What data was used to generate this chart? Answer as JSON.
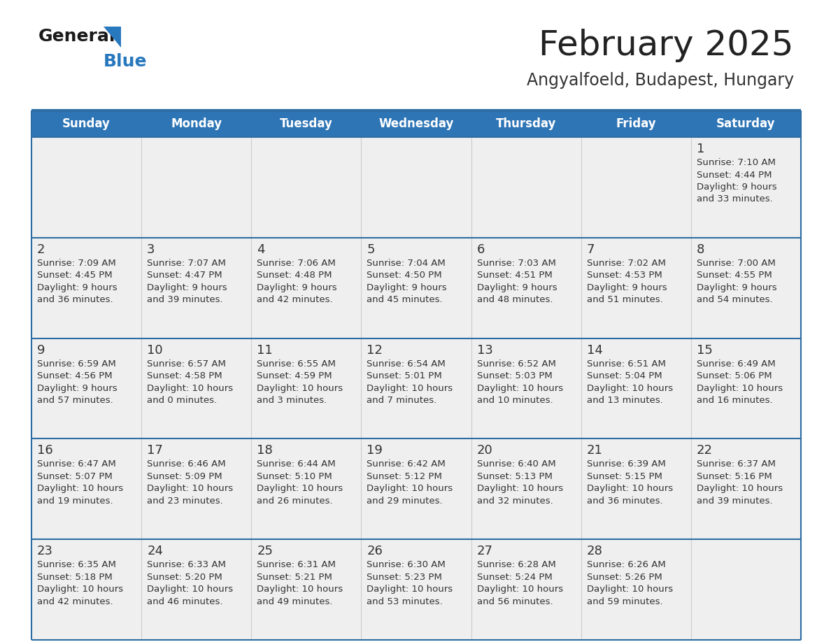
{
  "title": "February 2025",
  "subtitle": "Angyalfoeld, Budapest, Hungary",
  "days_of_week": [
    "Sunday",
    "Monday",
    "Tuesday",
    "Wednesday",
    "Thursday",
    "Friday",
    "Saturday"
  ],
  "header_bg": "#2E75B6",
  "header_text_color": "#FFFFFF",
  "cell_bg": "#EFEFEF",
  "border_color": "#2E6DA4",
  "day_number_color": "#333333",
  "info_text_color": "#333333",
  "title_color": "#222222",
  "subtitle_color": "#333333",
  "logo_general_color": "#1A1A1A",
  "logo_blue_color": "#2878BE",
  "calendar_data": [
    {
      "day": 1,
      "col": 6,
      "row": 0,
      "sunrise": "7:10 AM",
      "sunset": "4:44 PM",
      "daylight": "9 hours\nand 33 minutes."
    },
    {
      "day": 2,
      "col": 0,
      "row": 1,
      "sunrise": "7:09 AM",
      "sunset": "4:45 PM",
      "daylight": "9 hours\nand 36 minutes."
    },
    {
      "day": 3,
      "col": 1,
      "row": 1,
      "sunrise": "7:07 AM",
      "sunset": "4:47 PM",
      "daylight": "9 hours\nand 39 minutes."
    },
    {
      "day": 4,
      "col": 2,
      "row": 1,
      "sunrise": "7:06 AM",
      "sunset": "4:48 PM",
      "daylight": "9 hours\nand 42 minutes."
    },
    {
      "day": 5,
      "col": 3,
      "row": 1,
      "sunrise": "7:04 AM",
      "sunset": "4:50 PM",
      "daylight": "9 hours\nand 45 minutes."
    },
    {
      "day": 6,
      "col": 4,
      "row": 1,
      "sunrise": "7:03 AM",
      "sunset": "4:51 PM",
      "daylight": "9 hours\nand 48 minutes."
    },
    {
      "day": 7,
      "col": 5,
      "row": 1,
      "sunrise": "7:02 AM",
      "sunset": "4:53 PM",
      "daylight": "9 hours\nand 51 minutes."
    },
    {
      "day": 8,
      "col": 6,
      "row": 1,
      "sunrise": "7:00 AM",
      "sunset": "4:55 PM",
      "daylight": "9 hours\nand 54 minutes."
    },
    {
      "day": 9,
      "col": 0,
      "row": 2,
      "sunrise": "6:59 AM",
      "sunset": "4:56 PM",
      "daylight": "9 hours\nand 57 minutes."
    },
    {
      "day": 10,
      "col": 1,
      "row": 2,
      "sunrise": "6:57 AM",
      "sunset": "4:58 PM",
      "daylight": "10 hours\nand 0 minutes."
    },
    {
      "day": 11,
      "col": 2,
      "row": 2,
      "sunrise": "6:55 AM",
      "sunset": "4:59 PM",
      "daylight": "10 hours\nand 3 minutes."
    },
    {
      "day": 12,
      "col": 3,
      "row": 2,
      "sunrise": "6:54 AM",
      "sunset": "5:01 PM",
      "daylight": "10 hours\nand 7 minutes."
    },
    {
      "day": 13,
      "col": 4,
      "row": 2,
      "sunrise": "6:52 AM",
      "sunset": "5:03 PM",
      "daylight": "10 hours\nand 10 minutes."
    },
    {
      "day": 14,
      "col": 5,
      "row": 2,
      "sunrise": "6:51 AM",
      "sunset": "5:04 PM",
      "daylight": "10 hours\nand 13 minutes."
    },
    {
      "day": 15,
      "col": 6,
      "row": 2,
      "sunrise": "6:49 AM",
      "sunset": "5:06 PM",
      "daylight": "10 hours\nand 16 minutes."
    },
    {
      "day": 16,
      "col": 0,
      "row": 3,
      "sunrise": "6:47 AM",
      "sunset": "5:07 PM",
      "daylight": "10 hours\nand 19 minutes."
    },
    {
      "day": 17,
      "col": 1,
      "row": 3,
      "sunrise": "6:46 AM",
      "sunset": "5:09 PM",
      "daylight": "10 hours\nand 23 minutes."
    },
    {
      "day": 18,
      "col": 2,
      "row": 3,
      "sunrise": "6:44 AM",
      "sunset": "5:10 PM",
      "daylight": "10 hours\nand 26 minutes."
    },
    {
      "day": 19,
      "col": 3,
      "row": 3,
      "sunrise": "6:42 AM",
      "sunset": "5:12 PM",
      "daylight": "10 hours\nand 29 minutes."
    },
    {
      "day": 20,
      "col": 4,
      "row": 3,
      "sunrise": "6:40 AM",
      "sunset": "5:13 PM",
      "daylight": "10 hours\nand 32 minutes."
    },
    {
      "day": 21,
      "col": 5,
      "row": 3,
      "sunrise": "6:39 AM",
      "sunset": "5:15 PM",
      "daylight": "10 hours\nand 36 minutes."
    },
    {
      "day": 22,
      "col": 6,
      "row": 3,
      "sunrise": "6:37 AM",
      "sunset": "5:16 PM",
      "daylight": "10 hours\nand 39 minutes."
    },
    {
      "day": 23,
      "col": 0,
      "row": 4,
      "sunrise": "6:35 AM",
      "sunset": "5:18 PM",
      "daylight": "10 hours\nand 42 minutes."
    },
    {
      "day": 24,
      "col": 1,
      "row": 4,
      "sunrise": "6:33 AM",
      "sunset": "5:20 PM",
      "daylight": "10 hours\nand 46 minutes."
    },
    {
      "day": 25,
      "col": 2,
      "row": 4,
      "sunrise": "6:31 AM",
      "sunset": "5:21 PM",
      "daylight": "10 hours\nand 49 minutes."
    },
    {
      "day": 26,
      "col": 3,
      "row": 4,
      "sunrise": "6:30 AM",
      "sunset": "5:23 PM",
      "daylight": "10 hours\nand 53 minutes."
    },
    {
      "day": 27,
      "col": 4,
      "row": 4,
      "sunrise": "6:28 AM",
      "sunset": "5:24 PM",
      "daylight": "10 hours\nand 56 minutes."
    },
    {
      "day": 28,
      "col": 5,
      "row": 4,
      "sunrise": "6:26 AM",
      "sunset": "5:26 PM",
      "daylight": "10 hours\nand 59 minutes."
    }
  ]
}
